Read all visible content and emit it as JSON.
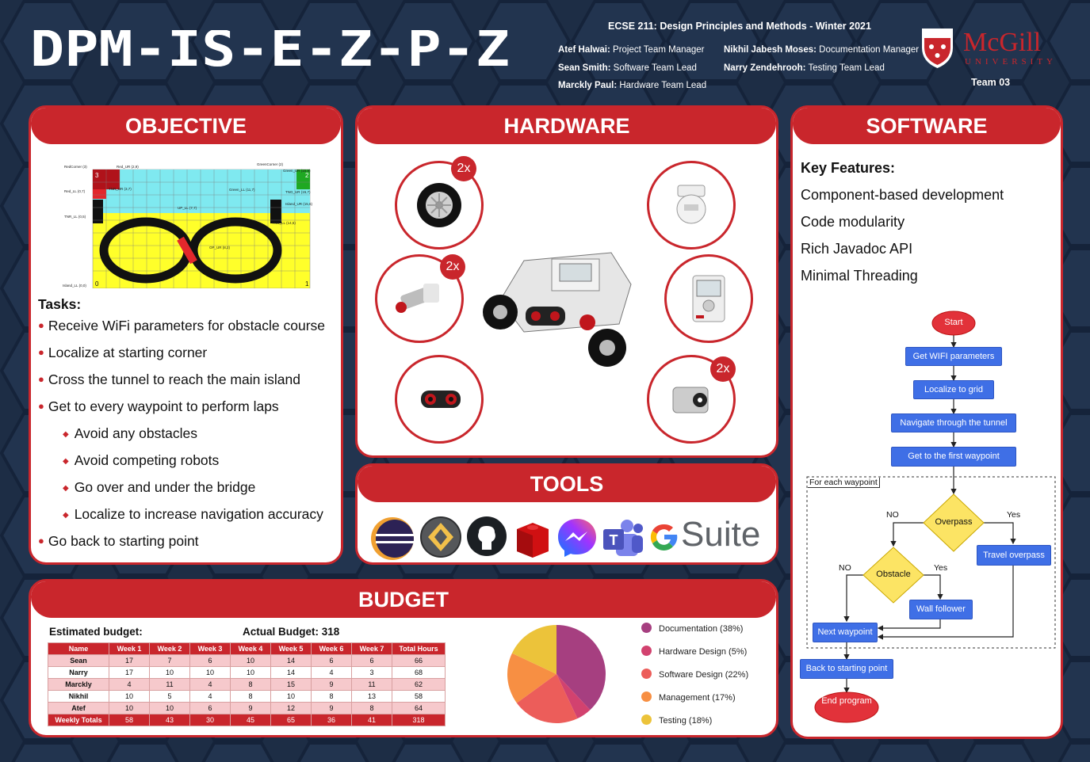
{
  "header": {
    "title": "DPM-IS-E-Z-P-Z",
    "course": "ECSE 211: Design Principles and Methods - Winter 2021",
    "team": "Team 03",
    "logo_text": "McGill",
    "logo_sub": "UNIVERSITY",
    "members": [
      {
        "name": "Atef Halwai:",
        "role": "Project Team Manager"
      },
      {
        "name": "Sean Smith:",
        "role": "Software Team Lead"
      },
      {
        "name": "Marckly Paul:",
        "role": "Hardware Team Lead"
      },
      {
        "name": "Nikhil Jabesh Moses:",
        "role": "Documentation Manager"
      },
      {
        "name": "Narry Zendehrooh:",
        "role": "Testing Team Lead"
      }
    ]
  },
  "objective": {
    "heading": "OBJECTIVE",
    "map_labels": {
      "red_corner": "RedCorner (3)",
      "green_corner": "GreenCorner (2)",
      "red_ur": "Red_UR (2,9)",
      "green_ur": "Green_UR (15,9)",
      "red_ll": "Red_LL (0,7)",
      "green_ll": "Green_LL (11,7)",
      "tnr_ur": "TNR_UR (3,7)",
      "tng_ur": "TNG_UR (15,7)",
      "tnr_ll": "TNR_LL (0,5)",
      "tng_ll": "TNG_LL (14,5)",
      "island_ur": "Island_UR (15,6)",
      "up_ll": "UP_LL (7,7)",
      "op_ur": "OP_UR (8,2)",
      "island_ll": "Island_LL (0,0)",
      "c0": "0",
      "c1": "1",
      "c2": "2",
      "c3": "3"
    },
    "tasks_label": "Tasks:",
    "tasks": [
      "Receive WiFi parameters for obstacle course",
      "Localize at starting corner",
      "Cross the tunnel to reach the main island",
      "Get to every waypoint to perform laps"
    ],
    "subtasks": [
      "Avoid any obstacles",
      "Avoid competing robots",
      "Go over and under the bridge",
      "Localize to increase navigation accuracy"
    ],
    "final_task": "Go back to starting point"
  },
  "hardware": {
    "heading": "HARDWARE",
    "badges": [
      "2x",
      "2x",
      "2x"
    ],
    "icons": [
      "wheel-icon",
      "medium-motor-icon",
      "ultrasonic-sensor-icon",
      "gyro-sensor-icon",
      "ev3-brick-icon",
      "color-sensor-icon",
      "robot-icon"
    ]
  },
  "tools": {
    "heading": "TOOLS",
    "gsuite": "Suite",
    "icons": [
      "eclipse-icon",
      "gradle-icon",
      "github-icon",
      "lego-brick-icon",
      "messenger-icon",
      "teams-icon",
      "google-g-icon"
    ]
  },
  "software": {
    "heading": "SOFTWARE",
    "features_label": "Key Features:",
    "features": [
      "Component-based development",
      "Code modularity",
      "Rich Javadoc API",
      "Minimal Threading"
    ],
    "flow": {
      "start": "Start",
      "wifi": "Get WIFI parameters",
      "localize": "Localize to grid",
      "tunnel": "Navigate through the tunnel",
      "first_wp": "Get to the first waypoint",
      "loop_label": "For each waypoint",
      "overpass": "Overpass",
      "obstacle": "Obstacle",
      "travel_overpass": "Travel overpass",
      "wall_follower": "Wall follower",
      "next_wp": "Next waypoint",
      "back": "Back to starting point",
      "end": "End program",
      "no": "NO",
      "yes": "Yes"
    }
  },
  "budget": {
    "heading": "BUDGET",
    "estimated_label": "Estimated budget:",
    "actual_label": "Actual Budget: 318",
    "columns": [
      "Name",
      "Week 1",
      "Week 2",
      "Week 3",
      "Week 4",
      "Week 5",
      "Week 6",
      "Week 7",
      "Total Hours"
    ],
    "rows": [
      [
        "Sean",
        "17",
        "7",
        "6",
        "10",
        "14",
        "6",
        "6",
        "66"
      ],
      [
        "Narry",
        "17",
        "10",
        "10",
        "10",
        "14",
        "4",
        "3",
        "68"
      ],
      [
        "Marckly",
        "4",
        "11",
        "4",
        "8",
        "15",
        "9",
        "11",
        "62"
      ],
      [
        "Nikhil",
        "10",
        "5",
        "4",
        "8",
        "10",
        "8",
        "13",
        "58"
      ],
      [
        "Atef",
        "10",
        "10",
        "6",
        "9",
        "12",
        "9",
        "8",
        "64"
      ],
      [
        "Weekly Totals",
        "58",
        "43",
        "30",
        "45",
        "65",
        "36",
        "41",
        "318"
      ]
    ]
  },
  "chart_data": {
    "type": "pie",
    "categories": [
      "Documentation (38%)",
      "Hardware Design (5%)",
      "Software Design (22%)",
      "Management (17%)",
      "Testing (18%)"
    ],
    "values": [
      38,
      5,
      22,
      17,
      18
    ],
    "colors": [
      "#a63f80",
      "#d2426f",
      "#ec5d5a",
      "#f78f43",
      "#ecc33a"
    ],
    "legend": "right"
  }
}
